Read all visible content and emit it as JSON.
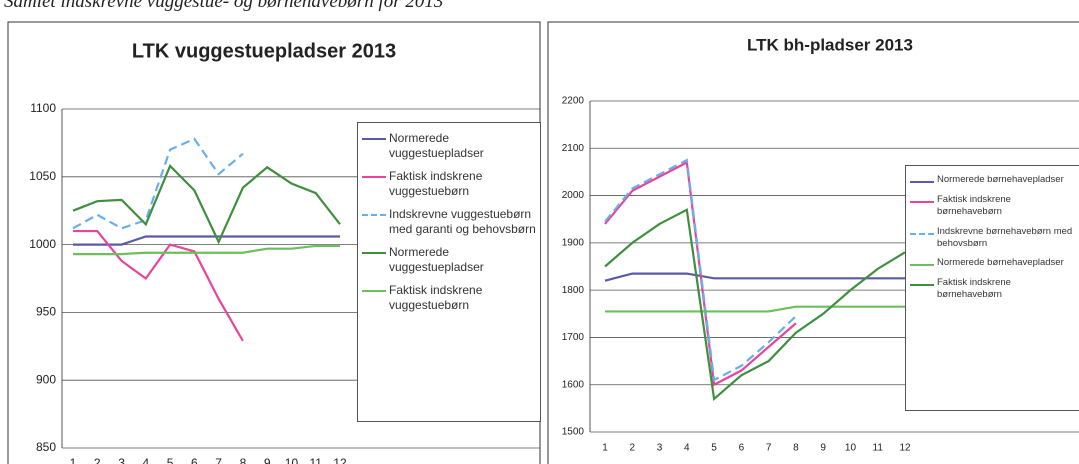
{
  "caption": "Samlet indskrevne vuggestue- og børnehavebørn for 2013",
  "chart_data": [
    {
      "type": "line",
      "title": "LTK vuggestuepladser 2013",
      "categories": [
        "1",
        "2",
        "3",
        "4",
        "5",
        "6",
        "7",
        "8",
        "9",
        "10",
        "11",
        "12"
      ],
      "ylim": [
        850,
        1100
      ],
      "yticks": [
        850,
        900,
        950,
        1000,
        1050,
        1100
      ],
      "grid": true,
      "series": [
        {
          "name": "Normerede vuggestuepladser",
          "color": "#5a5aa8",
          "values": [
            1000,
            1000,
            1000,
            1006,
            1006,
            1006,
            1006,
            1006,
            1006,
            1006,
            1006,
            1006
          ]
        },
        {
          "name": "Faktisk indskrene vuggestuebørn",
          "color": "#e8449a",
          "values": [
            1010,
            1010,
            988,
            975,
            1000,
            995,
            960,
            929,
            null,
            null,
            null,
            null
          ]
        },
        {
          "name": "Indskrevne vuggestuebørn med garanti og behovsbørn",
          "color": "#6aaeea",
          "dashed": true,
          "values": [
            1012,
            1022,
            1012,
            1018,
            1070,
            1078,
            1052,
            1067,
            null,
            null,
            null,
            null
          ]
        },
        {
          "name": "Normerede vuggestuepladser",
          "color": "#3f8f3f",
          "values": [
            1025,
            1032,
            1033,
            1015,
            1058,
            1040,
            1002,
            1042,
            1057,
            1045,
            1038,
            1015
          ]
        },
        {
          "name": "Faktisk indskrene vuggestuebørn",
          "color": "#6cbf5c",
          "values": [
            993,
            993,
            993,
            994,
            994,
            994,
            994,
            994,
            997,
            997,
            999,
            999
          ]
        }
      ]
    },
    {
      "type": "line",
      "title": "LTK bh-pladser 2013",
      "categories": [
        "1",
        "2",
        "3",
        "4",
        "5",
        "6",
        "7",
        "8",
        "9",
        "10",
        "11",
        "12"
      ],
      "ylim": [
        1500,
        2200
      ],
      "yticks": [
        1500,
        1600,
        1700,
        1800,
        1900,
        2000,
        2100,
        2200
      ],
      "grid": true,
      "series": [
        {
          "name": "Normerede børnehavepladser",
          "color": "#5a5aa8",
          "values": [
            1820,
            1835,
            1835,
            1835,
            1825,
            1825,
            1825,
            1825,
            1825,
            1825,
            1825,
            1825
          ]
        },
        {
          "name": "Faktisk indskrene børnehavebørn",
          "color": "#e8449a",
          "values": [
            1940,
            2010,
            2040,
            2070,
            1600,
            1630,
            1680,
            1730,
            null,
            null,
            null,
            null
          ]
        },
        {
          "name": "Indskrevne børnehavebørn med behovsbørn",
          "color": "#6aaeea",
          "dashed": true,
          "values": [
            1945,
            2015,
            2045,
            2075,
            1610,
            1640,
            1690,
            1745,
            null,
            null,
            null,
            null
          ]
        },
        {
          "name": "Normerede børnehavepladser",
          "color": "#6cbf5c",
          "values": [
            1755,
            1755,
            1755,
            1755,
            1755,
            1755,
            1755,
            1765,
            1765,
            1765,
            1765,
            1765
          ]
        },
        {
          "name": "Faktisk indskrene børnehavebørn",
          "color": "#3f8f3f",
          "values": [
            1850,
            1900,
            1940,
            1970,
            1570,
            1620,
            1650,
            1710,
            1750,
            1800,
            1845,
            1880
          ]
        }
      ]
    }
  ]
}
